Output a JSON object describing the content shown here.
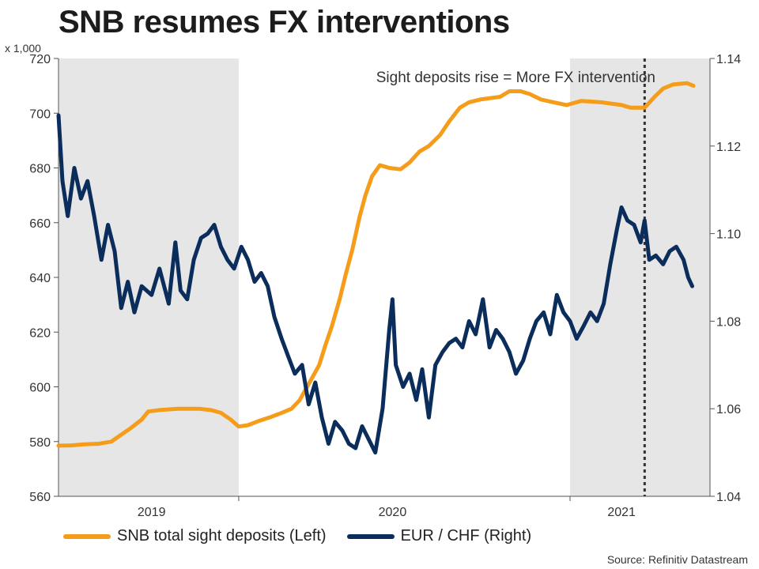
{
  "title": "SNB resumes FX interventions",
  "source": "Source: Refinitiv Datastream",
  "chart_data": {
    "type": "line",
    "title": "SNB resumes FX interventions",
    "left_axis_unit": "x 1,000",
    "left_axis": {
      "range": [
        560,
        720
      ],
      "ticks": [
        560,
        580,
        600,
        620,
        640,
        660,
        680,
        700,
        720
      ]
    },
    "right_axis": {
      "range": [
        1.04,
        1.14
      ],
      "ticks": [
        "1.04",
        "1.06",
        "1.08",
        "1.10",
        "1.12",
        "1.14"
      ]
    },
    "x_axis": {
      "start": "2018-09-01",
      "end": "2021-05-15",
      "labels": [
        "2019",
        "2020",
        "2021"
      ]
    },
    "shaded_periods": [
      {
        "label": "2019",
        "start": "2018-09-01",
        "end": "2019-06-01"
      },
      {
        "label": "2021",
        "start": "2020-10-15",
        "end": "2021-05-15"
      }
    ],
    "vertical_marker": {
      "date": "2021-02-05",
      "style": "dotted"
    },
    "annotation": "Sight deposits rise = More FX intervention",
    "legend_position": "bottom",
    "colors": {
      "deposits": "#f59c1a",
      "eurchf": "#0b2d5b",
      "shade": "#e6e6e6",
      "marker": "#333333"
    },
    "series": [
      {
        "name": "SNB total sight deposits (Left)",
        "axis": "left",
        "points": [
          [
            "2018-09-01",
            578.5
          ],
          [
            "2018-09-20",
            578.6
          ],
          [
            "2018-10-10",
            579.0
          ],
          [
            "2018-11-01",
            579.2
          ],
          [
            "2018-11-20",
            580.0
          ],
          [
            "2018-12-05",
            582.5
          ],
          [
            "2018-12-20",
            585.0
          ],
          [
            "2019-01-05",
            588.0
          ],
          [
            "2019-01-15",
            591.0
          ],
          [
            "2019-02-01",
            591.5
          ],
          [
            "2019-03-01",
            592.0
          ],
          [
            "2019-04-01",
            592.0
          ],
          [
            "2019-04-20",
            591.5
          ],
          [
            "2019-05-05",
            590.5
          ],
          [
            "2019-05-20",
            588.0
          ],
          [
            "2019-06-01",
            585.5
          ],
          [
            "2019-06-15",
            586.0
          ],
          [
            "2019-07-01",
            587.5
          ],
          [
            "2019-07-20",
            589.0
          ],
          [
            "2019-08-05",
            590.5
          ],
          [
            "2019-08-20",
            592.0
          ],
          [
            "2019-09-01",
            595.0
          ],
          [
            "2019-09-15",
            601.0
          ],
          [
            "2019-10-01",
            608.0
          ],
          [
            "2019-10-10",
            615.0
          ],
          [
            "2019-10-20",
            622.0
          ],
          [
            "2019-11-01",
            632.0
          ],
          [
            "2019-11-10",
            641.0
          ],
          [
            "2019-11-20",
            650.0
          ],
          [
            "2019-12-01",
            662.0
          ],
          [
            "2019-12-10",
            670.0
          ],
          [
            "2019-12-20",
            677.0
          ],
          [
            "2020-01-01",
            681.0
          ],
          [
            "2020-01-15",
            680.0
          ],
          [
            "2020-02-01",
            679.5
          ],
          [
            "2020-02-15",
            682.0
          ],
          [
            "2020-03-01",
            686.0
          ],
          [
            "2020-03-15",
            688.0
          ],
          [
            "2020-04-01",
            692.0
          ],
          [
            "2020-04-15",
            697.0
          ],
          [
            "2020-05-01",
            702.0
          ],
          [
            "2020-05-15",
            704.0
          ],
          [
            "2020-06-01",
            705.0
          ],
          [
            "2020-07-01",
            706.0
          ],
          [
            "2020-07-15",
            708.0
          ],
          [
            "2020-08-01",
            708.0
          ],
          [
            "2020-08-15",
            707.0
          ],
          [
            "2020-09-01",
            705.0
          ],
          [
            "2020-09-20",
            704.0
          ],
          [
            "2020-10-10",
            703.0
          ],
          [
            "2020-11-01",
            704.5
          ],
          [
            "2020-12-01",
            704.0
          ],
          [
            "2021-01-01",
            703.0
          ],
          [
            "2021-01-15",
            702.0
          ],
          [
            "2021-02-05",
            702.0
          ],
          [
            "2021-02-20",
            706.0
          ],
          [
            "2021-03-05",
            709.0
          ],
          [
            "2021-03-20",
            710.5
          ],
          [
            "2021-04-10",
            711.0
          ],
          [
            "2021-04-20",
            710.0
          ]
        ]
      },
      {
        "name": "EUR / CHF (Right)",
        "axis": "right",
        "points": [
          [
            "2018-09-01",
            1.127
          ],
          [
            "2018-09-07",
            1.112
          ],
          [
            "2018-09-15",
            1.104
          ],
          [
            "2018-09-25",
            1.115
          ],
          [
            "2018-10-05",
            1.108
          ],
          [
            "2018-10-15",
            1.112
          ],
          [
            "2018-10-25",
            1.104
          ],
          [
            "2018-11-05",
            1.094
          ],
          [
            "2018-11-15",
            1.102
          ],
          [
            "2018-11-25",
            1.096
          ],
          [
            "2018-12-05",
            1.083
          ],
          [
            "2018-12-15",
            1.089
          ],
          [
            "2018-12-25",
            1.082
          ],
          [
            "2019-01-05",
            1.088
          ],
          [
            "2019-01-20",
            1.086
          ],
          [
            "2019-02-01",
            1.092
          ],
          [
            "2019-02-15",
            1.084
          ],
          [
            "2019-02-25",
            1.098
          ],
          [
            "2019-03-05",
            1.087
          ],
          [
            "2019-03-15",
            1.085
          ],
          [
            "2019-03-25",
            1.094
          ],
          [
            "2019-04-05",
            1.099
          ],
          [
            "2019-04-15",
            1.1
          ],
          [
            "2019-04-25",
            1.102
          ],
          [
            "2019-05-05",
            1.097
          ],
          [
            "2019-05-15",
            1.094
          ],
          [
            "2019-05-25",
            1.092
          ],
          [
            "2019-06-05",
            1.097
          ],
          [
            "2019-06-15",
            1.094
          ],
          [
            "2019-06-25",
            1.089
          ],
          [
            "2019-07-05",
            1.091
          ],
          [
            "2019-07-15",
            1.088
          ],
          [
            "2019-07-25",
            1.081
          ],
          [
            "2019-08-05",
            1.076
          ],
          [
            "2019-08-15",
            1.072
          ],
          [
            "2019-08-25",
            1.068
          ],
          [
            "2019-09-05",
            1.07
          ],
          [
            "2019-09-15",
            1.061
          ],
          [
            "2019-09-25",
            1.066
          ],
          [
            "2019-10-05",
            1.058
          ],
          [
            "2019-10-15",
            1.052
          ],
          [
            "2019-10-25",
            1.057
          ],
          [
            "2019-11-05",
            1.055
          ],
          [
            "2019-11-15",
            1.052
          ],
          [
            "2019-11-25",
            1.051
          ],
          [
            "2019-12-05",
            1.056
          ],
          [
            "2019-12-15",
            1.053
          ],
          [
            "2019-12-25",
            1.05
          ],
          [
            "2020-01-05",
            1.06
          ],
          [
            "2020-01-15",
            1.078
          ],
          [
            "2020-01-20",
            1.085
          ],
          [
            "2020-01-25",
            1.07
          ],
          [
            "2020-02-05",
            1.065
          ],
          [
            "2020-02-15",
            1.068
          ],
          [
            "2020-02-25",
            1.062
          ],
          [
            "2020-03-05",
            1.069
          ],
          [
            "2020-03-15",
            1.058
          ],
          [
            "2020-03-25",
            1.07
          ],
          [
            "2020-04-05",
            1.073
          ],
          [
            "2020-04-15",
            1.075
          ],
          [
            "2020-04-25",
            1.076
          ],
          [
            "2020-05-05",
            1.074
          ],
          [
            "2020-05-15",
            1.08
          ],
          [
            "2020-05-25",
            1.077
          ],
          [
            "2020-06-05",
            1.085
          ],
          [
            "2020-06-15",
            1.074
          ],
          [
            "2020-06-25",
            1.078
          ],
          [
            "2020-07-05",
            1.076
          ],
          [
            "2020-07-15",
            1.073
          ],
          [
            "2020-07-25",
            1.068
          ],
          [
            "2020-08-05",
            1.071
          ],
          [
            "2020-08-15",
            1.076
          ],
          [
            "2020-08-25",
            1.08
          ],
          [
            "2020-09-05",
            1.082
          ],
          [
            "2020-09-15",
            1.077
          ],
          [
            "2020-09-25",
            1.086
          ],
          [
            "2020-10-05",
            1.082
          ],
          [
            "2020-10-15",
            1.08
          ],
          [
            "2020-10-25",
            1.076
          ],
          [
            "2020-11-05",
            1.079
          ],
          [
            "2020-11-15",
            1.082
          ],
          [
            "2020-11-25",
            1.08
          ],
          [
            "2020-12-05",
            1.084
          ],
          [
            "2020-12-15",
            1.093
          ],
          [
            "2020-12-25",
            1.101
          ],
          [
            "2021-01-01",
            1.106
          ],
          [
            "2021-01-10",
            1.103
          ],
          [
            "2021-01-20",
            1.102
          ],
          [
            "2021-01-30",
            1.098
          ],
          [
            "2021-02-05",
            1.103
          ],
          [
            "2021-02-12",
            1.094
          ],
          [
            "2021-02-22",
            1.095
          ],
          [
            "2021-03-05",
            1.093
          ],
          [
            "2021-03-15",
            1.096
          ],
          [
            "2021-03-25",
            1.097
          ],
          [
            "2021-04-05",
            1.094
          ],
          [
            "2021-04-12",
            1.09
          ],
          [
            "2021-04-18",
            1.088
          ]
        ]
      }
    ]
  }
}
